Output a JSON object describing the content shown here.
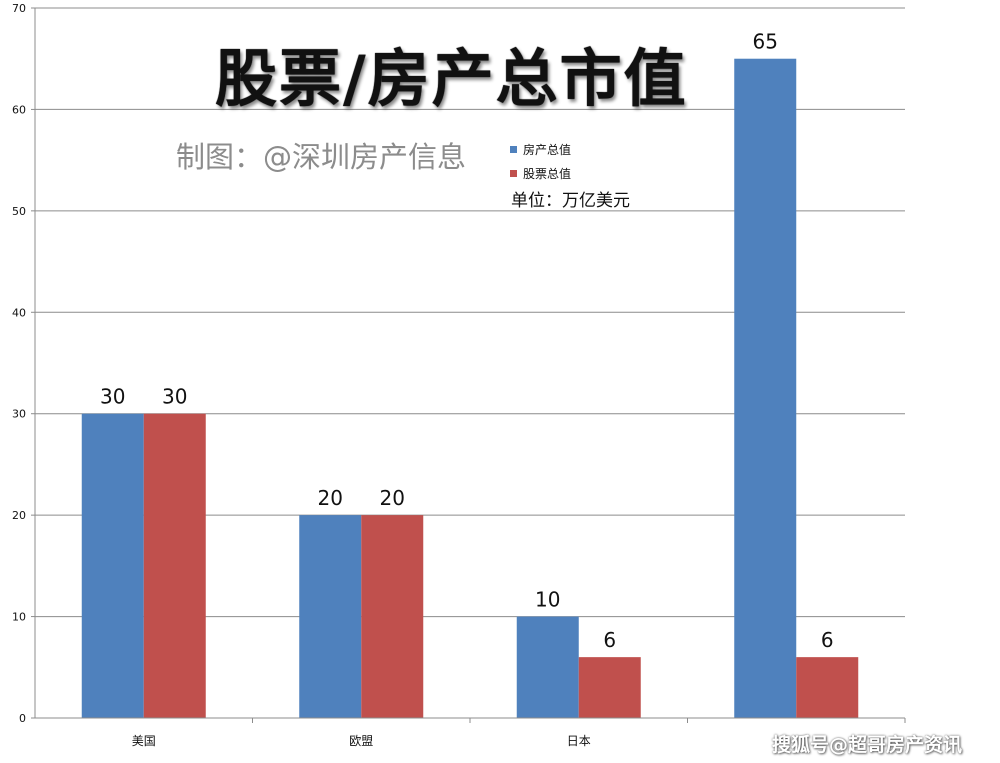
{
  "chart_data": {
    "type": "bar",
    "title": "股票/房产总市值",
    "subtitle": "制图：@深圳房产信息",
    "unit_note": "单位：万亿美元",
    "categories": [
      "美国",
      "欧盟",
      "日本",
      ""
    ],
    "series": [
      {
        "name": "房产总值",
        "color": "#4f81bd",
        "values": [
          30,
          20,
          10,
          65
        ]
      },
      {
        "name": "股票总值",
        "color": "#c0504d",
        "values": [
          30,
          20,
          6,
          6
        ]
      }
    ],
    "y_ticks": [
      "0",
      "10",
      "20",
      "30",
      "40",
      "50",
      "60",
      "70"
    ],
    "ylim": [
      0,
      70
    ],
    "grid": true,
    "legend_position": "top-center",
    "data_labels": true
  },
  "watermark": "搜狐号@超哥房产资讯"
}
